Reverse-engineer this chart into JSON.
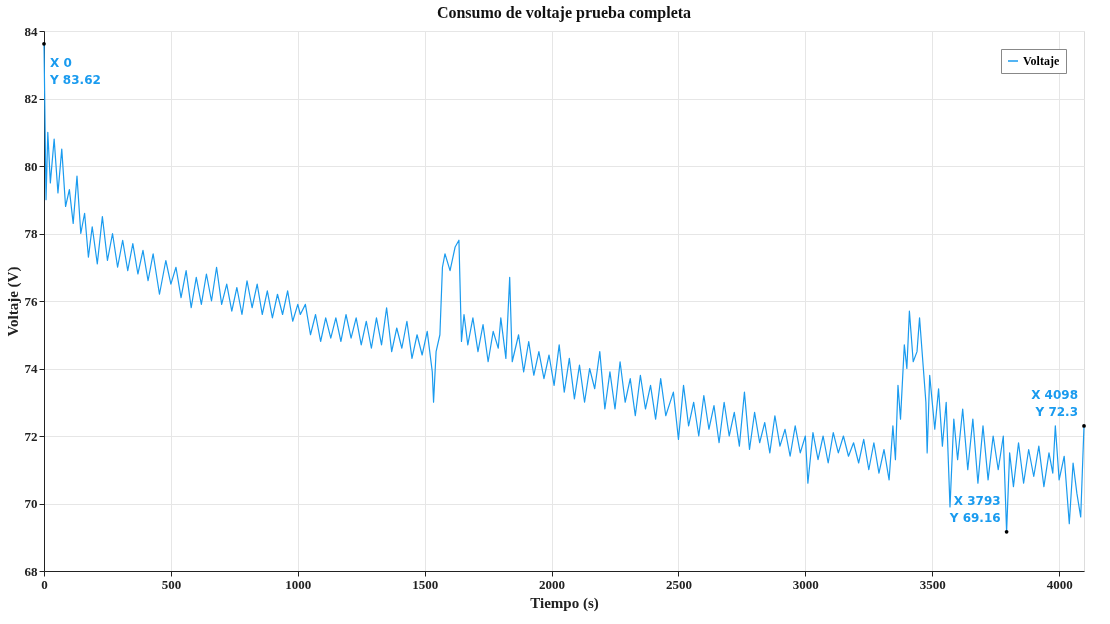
{
  "chart_data": {
    "type": "line",
    "title": "Consumo de voltaje prueba completa",
    "xlabel": "Tiempo (s)",
    "ylabel": "Voltaje (V)",
    "xlim": [
      0,
      4098
    ],
    "ylim": [
      68,
      84
    ],
    "xticks": [
      0,
      500,
      1000,
      1500,
      2000,
      2500,
      3000,
      3500,
      4000
    ],
    "yticks": [
      68,
      70,
      72,
      74,
      76,
      78,
      80,
      82,
      84
    ],
    "grid": true,
    "legend": "top right",
    "line_style": "solid",
    "marker": "none",
    "annotations": [
      {
        "text": "X 0\nY 83.62",
        "x": 0,
        "y": 83.62
      },
      {
        "text": "X 3793\nY 69.16",
        "x": 3793,
        "y": 69.16
      },
      {
        "text": "X 4098\nY 72.3",
        "x": 4098,
        "y": 72.3
      }
    ],
    "series": [
      {
        "name": "Voltaje",
        "color": "#1a9bef",
        "x": [
          0,
          8,
          15,
          25,
          40,
          55,
          70,
          85,
          100,
          115,
          130,
          145,
          160,
          175,
          190,
          210,
          230,
          250,
          270,
          290,
          310,
          330,
          350,
          370,
          390,
          410,
          430,
          455,
          480,
          500,
          520,
          540,
          560,
          580,
          600,
          620,
          640,
          660,
          680,
          700,
          720,
          740,
          760,
          780,
          800,
          820,
          840,
          860,
          880,
          900,
          920,
          940,
          960,
          980,
          1000,
          1010,
          1030,
          1050,
          1070,
          1090,
          1110,
          1130,
          1150,
          1170,
          1190,
          1210,
          1230,
          1250,
          1270,
          1290,
          1310,
          1330,
          1350,
          1370,
          1390,
          1410,
          1430,
          1450,
          1470,
          1490,
          1510,
          1530,
          1535,
          1545,
          1560,
          1570,
          1580,
          1600,
          1620,
          1635,
          1645,
          1655,
          1670,
          1690,
          1710,
          1730,
          1750,
          1770,
          1790,
          1800,
          1820,
          1835,
          1845,
          1870,
          1890,
          1910,
          1930,
          1950,
          1970,
          1990,
          2010,
          2030,
          2050,
          2070,
          2090,
          2110,
          2130,
          2150,
          2170,
          2190,
          2210,
          2230,
          2250,
          2270,
          2290,
          2310,
          2330,
          2350,
          2370,
          2390,
          2410,
          2430,
          2450,
          2480,
          2500,
          2520,
          2540,
          2560,
          2580,
          2600,
          2620,
          2640,
          2660,
          2680,
          2700,
          2720,
          2740,
          2760,
          2780,
          2800,
          2820,
          2840,
          2860,
          2880,
          2900,
          2920,
          2940,
          2960,
          2980,
          3000,
          3010,
          3030,
          3050,
          3070,
          3090,
          3110,
          3130,
          3150,
          3170,
          3190,
          3210,
          3230,
          3250,
          3270,
          3290,
          3310,
          3330,
          3345,
          3355,
          3365,
          3375,
          3390,
          3400,
          3410,
          3425,
          3440,
          3450,
          3465,
          3475,
          3480,
          3490,
          3510,
          3525,
          3540,
          3555,
          3570,
          3585,
          3600,
          3620,
          3640,
          3660,
          3680,
          3700,
          3720,
          3740,
          3760,
          3780,
          3793,
          3805,
          3820,
          3840,
          3860,
          3880,
          3900,
          3920,
          3940,
          3960,
          3975,
          3985,
          4000,
          4020,
          4040,
          4055,
          4070,
          4085,
          4098
        ],
        "values": [
          83.62,
          79.0,
          81.0,
          79.5,
          80.8,
          79.2,
          80.5,
          78.8,
          79.3,
          78.3,
          79.7,
          78.0,
          78.6,
          77.3,
          78.2,
          77.1,
          78.5,
          77.2,
          78.0,
          77.0,
          77.8,
          76.9,
          77.7,
          76.8,
          77.5,
          76.6,
          77.4,
          76.2,
          77.2,
          76.5,
          77.0,
          76.1,
          76.9,
          75.8,
          76.7,
          75.9,
          76.8,
          76.0,
          77.0,
          75.9,
          76.5,
          75.7,
          76.4,
          75.6,
          76.6,
          75.8,
          76.5,
          75.6,
          76.3,
          75.5,
          76.2,
          75.6,
          76.3,
          75.4,
          75.9,
          75.6,
          75.9,
          75.0,
          75.6,
          74.8,
          75.5,
          74.9,
          75.5,
          74.8,
          75.6,
          74.9,
          75.5,
          74.7,
          75.4,
          74.6,
          75.5,
          74.7,
          75.8,
          74.5,
          75.2,
          74.6,
          75.4,
          74.3,
          75.0,
          74.4,
          75.1,
          73.9,
          73.0,
          74.5,
          75.0,
          77.0,
          77.4,
          76.9,
          77.6,
          77.8,
          74.8,
          75.6,
          74.7,
          75.5,
          74.5,
          75.3,
          74.2,
          75.1,
          74.6,
          75.5,
          74.3,
          76.7,
          74.2,
          75.0,
          73.9,
          74.8,
          73.8,
          74.5,
          73.7,
          74.4,
          73.5,
          74.7,
          73.3,
          74.3,
          73.1,
          74.1,
          73.0,
          74.0,
          73.4,
          74.5,
          72.8,
          73.9,
          72.8,
          74.2,
          73.0,
          73.7,
          72.6,
          73.8,
          72.8,
          73.5,
          72.5,
          73.7,
          72.6,
          73.3,
          71.9,
          73.5,
          72.3,
          73.0,
          72.0,
          73.2,
          72.2,
          72.9,
          71.8,
          73.0,
          72.0,
          72.7,
          71.7,
          73.3,
          71.6,
          72.7,
          71.8,
          72.4,
          71.5,
          72.6,
          71.7,
          72.2,
          71.4,
          72.3,
          71.5,
          72.0,
          70.6,
          72.1,
          71.3,
          72.0,
          71.2,
          72.1,
          71.5,
          72.0,
          71.4,
          71.8,
          71.2,
          71.9,
          71.0,
          71.8,
          70.9,
          71.6,
          70.7,
          72.3,
          71.3,
          73.5,
          72.5,
          74.7,
          74.0,
          75.7,
          74.2,
          74.5,
          75.5,
          74.0,
          73.0,
          71.5,
          73.8,
          72.2,
          73.4,
          71.7,
          73.0,
          69.9,
          72.5,
          71.3,
          72.8,
          71.0,
          72.5,
          70.6,
          72.3,
          70.7,
          72.0,
          71.0,
          72.0,
          69.16,
          71.5,
          70.5,
          71.8,
          70.6,
          71.6,
          70.8,
          71.7,
          70.5,
          71.5,
          70.9,
          72.3,
          70.7,
          71.4,
          69.4,
          71.2,
          70.3,
          69.6,
          72.3
        ]
      }
    ]
  }
}
